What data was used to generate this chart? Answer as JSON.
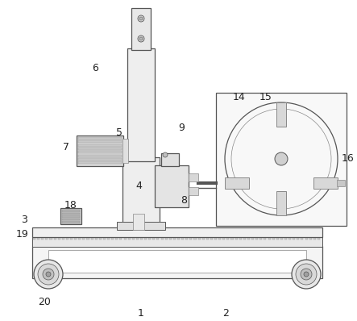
{
  "bg_color": "#ffffff",
  "line_color": "#555555",
  "fill_light": "#f0f0f0",
  "fill_medium": "#e0e0e0",
  "fill_dark": "#c8c8c8",
  "fill_gear": "#d0d0d0",
  "labels": [
    [
      "1",
      175,
      388
    ],
    [
      "2",
      280,
      388
    ],
    [
      "3",
      30,
      272
    ],
    [
      "4",
      172,
      230
    ],
    [
      "5",
      148,
      165
    ],
    [
      "6",
      118,
      85
    ],
    [
      "7",
      82,
      182
    ],
    [
      "8",
      228,
      248
    ],
    [
      "9",
      225,
      158
    ],
    [
      "14",
      297,
      120
    ],
    [
      "15",
      330,
      120
    ],
    [
      "16",
      432,
      197
    ],
    [
      "18",
      88,
      255
    ],
    [
      "19",
      28,
      290
    ],
    [
      "20",
      55,
      375
    ]
  ]
}
